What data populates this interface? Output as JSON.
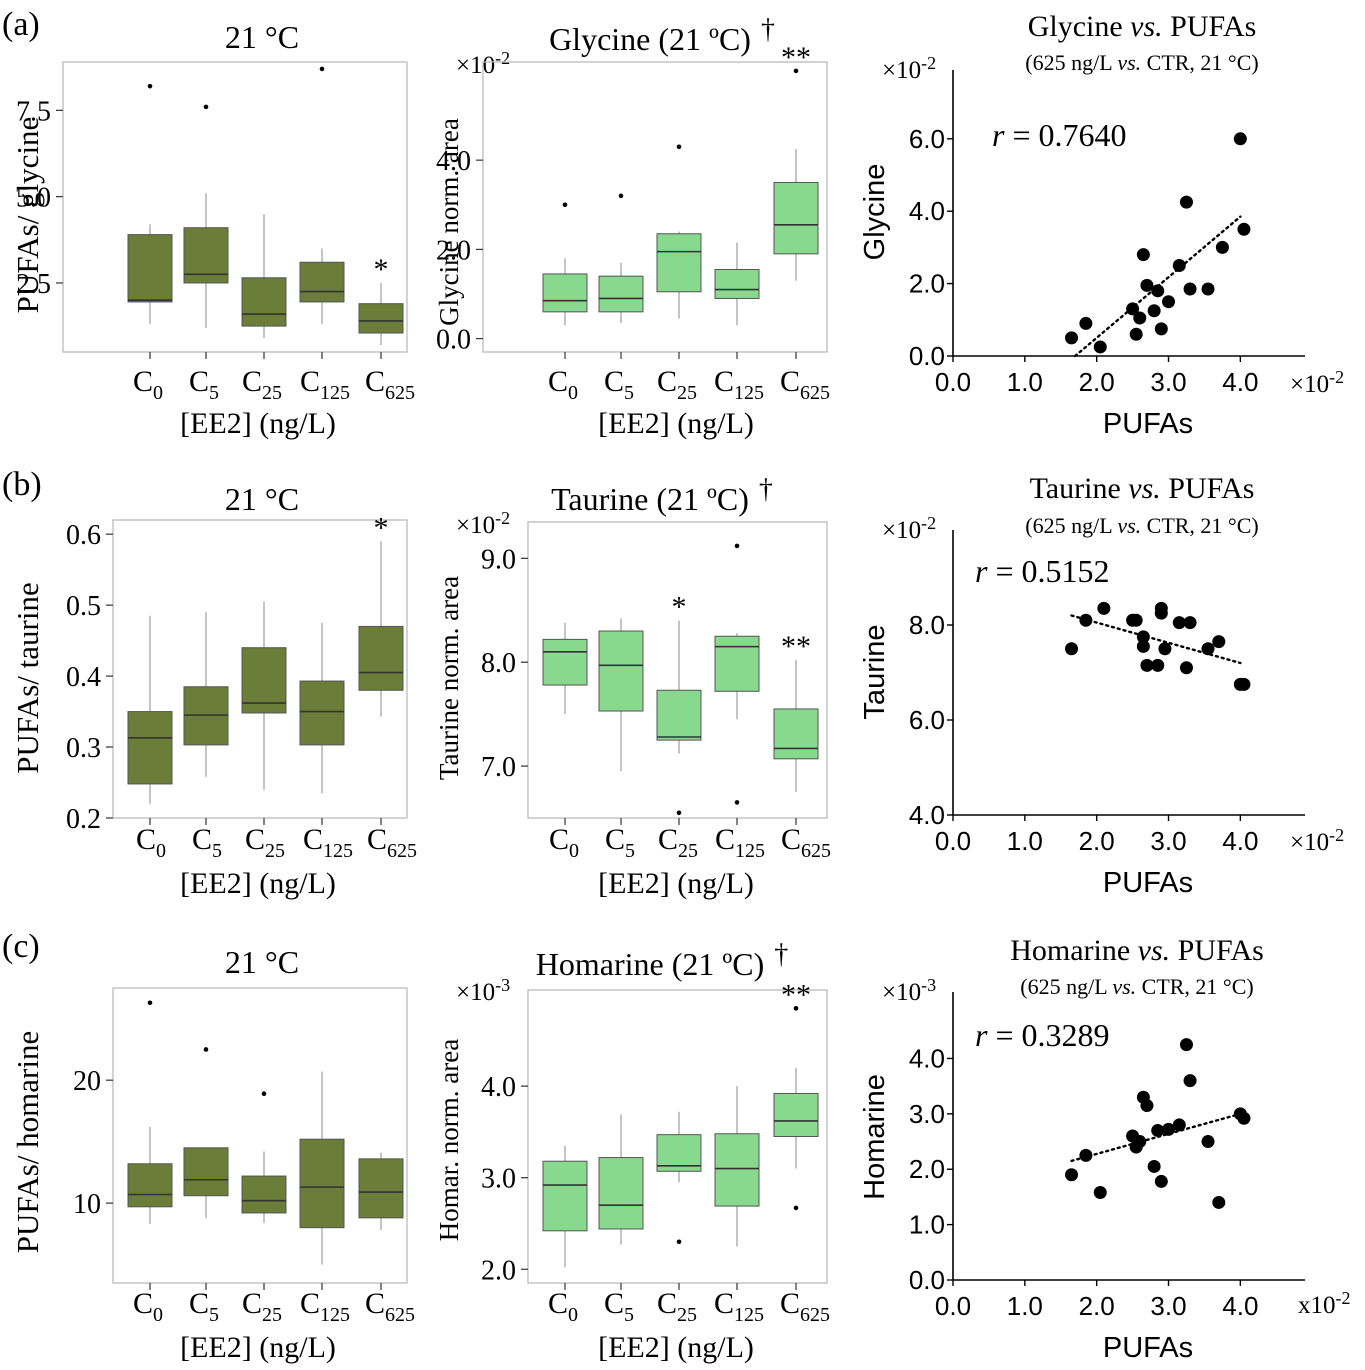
{
  "colors": {
    "dark_box": "#6b7d38",
    "light_box": "#88d88e",
    "frame": "#bbbbbb",
    "whisker": "#aaaaaa",
    "point": "#000000"
  },
  "rows": [
    {
      "label": "(a)",
      "ratio": {
        "title": "21 °C",
        "ylabel": "PUFAs/ glycine",
        "xlabel": "[EE2] (ng/L)",
        "ylim": [
          0.5,
          8.9
        ],
        "ticks": [
          2.5,
          5.0,
          7.5
        ],
        "tick_labels": [
          "2.5",
          "5.0",
          "7.5"
        ]
      },
      "metab": {
        "title": "Glycine (21 ºC)",
        "dagger": "†",
        "ylabel": "Glycine norm. area",
        "xlabel": "[EE2] (ng/L)",
        "multiplier": "×10",
        "exponent": "-2",
        "ylim": [
          -0.3,
          6.2
        ],
        "ticks": [
          0.0,
          2.0,
          4.0
        ],
        "tick_labels": [
          "0.0",
          "2.0",
          "4.0"
        ]
      },
      "scatter": {
        "title_pre": "Glycine ",
        "title_vs": "vs.",
        "title_post": " PUFAs",
        "subtitle_pre": "(625 ng/L ",
        "subtitle_vs": "vs.",
        "subtitle_post": " CTR, 21 °C)",
        "r_label": "r",
        "r_value": " = 0.7640",
        "ylabel": "Glycine",
        "xlabel": "PUFAs",
        "y_multiplier": "×10",
        "y_exponent": "-2",
        "x_multiplier": "×10",
        "x_exponent": "-2",
        "xlim": [
          0.0,
          4.9
        ],
        "ylim": [
          0.0,
          7.9
        ],
        "x_ticks": [
          0.0,
          1.0,
          2.0,
          3.0,
          4.0
        ],
        "x_tick_labels": [
          "0.0",
          "1.0",
          "2.0",
          "3.0",
          "4.0"
        ],
        "y_ticks": [
          0.0,
          2.0,
          4.0,
          6.0
        ],
        "y_tick_labels": [
          "0.0",
          "2.0",
          "4.0",
          "6.0"
        ],
        "fit": [
          [
            1.7,
            0.0
          ],
          [
            4.0,
            3.85
          ]
        ]
      }
    },
    {
      "label": "(b)",
      "ratio": {
        "title": "21 °C",
        "ylabel": "PUFAs/ taurine",
        "xlabel": "[EE2] (ng/L)",
        "ylim": [
          0.2,
          0.62
        ],
        "ticks": [
          0.2,
          0.3,
          0.4,
          0.5,
          0.6
        ],
        "tick_labels": [
          "0.2",
          "0.3",
          "0.4",
          "0.5",
          "0.6"
        ]
      },
      "metab": {
        "title": "Taurine (21 ºC)",
        "dagger": "†",
        "ylabel": "Taurine norm. area",
        "xlabel": "[EE2] (ng/L)",
        "multiplier": "×10",
        "exponent": "-2",
        "ylim": [
          6.5,
          9.35
        ],
        "ticks": [
          7.0,
          8.0,
          9.0
        ],
        "tick_labels": [
          "7.0",
          "8.0",
          "9.0"
        ]
      },
      "scatter": {
        "title_pre": "Taurine ",
        "title_vs": "vs.",
        "title_post": " PUFAs",
        "subtitle_pre": "(625 ng/L ",
        "subtitle_vs": "vs.",
        "subtitle_post": " CTR, 21 °C)",
        "r_label": "r",
        "r_value": " = 0.5152",
        "ylabel": "Taurine",
        "xlabel": "PUFAs",
        "y_multiplier": "×10",
        "y_exponent": "-2",
        "x_multiplier": "×10",
        "x_exponent": "-2",
        "xlim": [
          0.0,
          4.9
        ],
        "ylim": [
          4.0,
          10.0
        ],
        "x_ticks": [
          0.0,
          1.0,
          2.0,
          3.0,
          4.0
        ],
        "x_tick_labels": [
          "0.0",
          "1.0",
          "2.0",
          "3.0",
          "4.0"
        ],
        "y_ticks": [
          4.0,
          6.0,
          8.0
        ],
        "y_tick_labels": [
          "4.0",
          "6.0",
          "8.0"
        ],
        "fit": [
          [
            1.65,
            8.2
          ],
          [
            4.0,
            7.2
          ]
        ]
      }
    },
    {
      "label": "(c)",
      "ratio": {
        "title": "21 °C",
        "ylabel": "PUFAs/ homarine",
        "xlabel": "[EE2] (ng/L)",
        "ylim": [
          3.5,
          27.5
        ],
        "ticks": [
          10,
          20
        ],
        "tick_labels": [
          "10",
          "20"
        ]
      },
      "metab": {
        "title": "Homarine (21 ºC)",
        "dagger": "†",
        "ylabel": "Homar. norm. area",
        "xlabel": "[EE2] (ng/L)",
        "multiplier": "×10",
        "exponent": "-3",
        "ylim": [
          1.85,
          5.05
        ],
        "ticks": [
          2.0,
          3.0,
          4.0
        ],
        "tick_labels": [
          "2.0",
          "3.0",
          "4.0"
        ]
      },
      "scatter": {
        "title_pre": "Homarine ",
        "title_vs": "vs.",
        "title_post": " PUFAs",
        "subtitle_pre": "(625 ng/L ",
        "subtitle_vs": "vs.",
        "subtitle_post": " CTR, 21 °C)",
        "r_label": "r",
        "r_value": " = 0.3289",
        "ylabel": "Homarine",
        "xlabel": "PUFAs",
        "y_multiplier": "×10",
        "y_exponent": "-3",
        "x_multiplier": "x10",
        "x_exponent": "-2",
        "xlim": [
          0.0,
          4.9
        ],
        "ylim": [
          0.0,
          5.2
        ],
        "x_ticks": [
          0.0,
          1.0,
          2.0,
          3.0,
          4.0
        ],
        "x_tick_labels": [
          "0.0",
          "1.0",
          "2.0",
          "3.0",
          "4.0"
        ],
        "y_ticks": [
          0.0,
          1.0,
          2.0,
          3.0,
          4.0
        ],
        "y_tick_labels": [
          "0.0",
          "1.0",
          "2.0",
          "3.0",
          "4.0"
        ],
        "fit": [
          [
            1.65,
            2.15
          ],
          [
            4.0,
            3.0
          ]
        ]
      }
    }
  ],
  "chart_data": [
    {
      "type": "box",
      "panel": "(a) ratio",
      "title": "21 °C",
      "xlabel": "[EE2] (ng/L)",
      "ylabel": "PUFAs/ glycine",
      "categories": [
        "C0",
        "C5",
        "C25",
        "C125",
        "C625"
      ],
      "ylim": [
        0.5,
        8.9
      ],
      "boxes": [
        {
          "whisker_low": 1.3,
          "q1": 1.95,
          "median": 2.0,
          "q3": 3.9,
          "whisker_high": 4.2,
          "outliers": [
            8.2
          ]
        },
        {
          "whisker_low": 1.2,
          "q1": 2.5,
          "median": 2.75,
          "q3": 4.1,
          "whisker_high": 5.1,
          "outliers": [
            7.6
          ]
        },
        {
          "whisker_low": 0.9,
          "q1": 1.25,
          "median": 1.6,
          "q3": 2.65,
          "whisker_high": 4.5,
          "outliers": []
        },
        {
          "whisker_low": 1.3,
          "q1": 1.95,
          "median": 2.25,
          "q3": 3.1,
          "whisker_high": 3.5,
          "outliers": [
            8.7
          ]
        },
        {
          "whisker_low": 0.7,
          "q1": 1.05,
          "median": 1.4,
          "q3": 1.9,
          "whisker_high": 2.5,
          "outliers": []
        }
      ],
      "annotations": [
        {
          "category": "C625",
          "text": "*"
        }
      ]
    },
    {
      "type": "box",
      "panel": "(a) metabolite",
      "title": "Glycine (21 ºC) †",
      "xlabel": "[EE2] (ng/L)",
      "ylabel": "Glycine norm. area",
      "multiplier": "×10-2",
      "categories": [
        "C0",
        "C5",
        "C25",
        "C125",
        "C625"
      ],
      "ylim": [
        -0.3,
        6.2
      ],
      "boxes": [
        {
          "whisker_low": 0.3,
          "q1": 0.6,
          "median": 0.85,
          "q3": 1.45,
          "whisker_high": 1.8,
          "outliers": [
            3.0
          ]
        },
        {
          "whisker_low": 0.35,
          "q1": 0.6,
          "median": 0.9,
          "q3": 1.4,
          "whisker_high": 1.7,
          "outliers": [
            3.2
          ]
        },
        {
          "whisker_low": 0.45,
          "q1": 1.05,
          "median": 1.95,
          "q3": 2.35,
          "whisker_high": 2.4,
          "outliers": [
            4.3
          ]
        },
        {
          "whisker_low": 0.3,
          "q1": 0.9,
          "median": 1.1,
          "q3": 1.55,
          "whisker_high": 2.15,
          "outliers": []
        },
        {
          "whisker_low": 1.3,
          "q1": 1.9,
          "median": 2.55,
          "q3": 3.5,
          "whisker_high": 4.25,
          "outliers": [
            6.0
          ]
        }
      ],
      "annotations": [
        {
          "category": "C625",
          "text": "**"
        }
      ]
    },
    {
      "type": "scatter",
      "panel": "(a) correlation",
      "title": "Glycine vs. PUFAs",
      "subtitle": "(625 ng/L vs. CTR, 21 °C)",
      "xlabel": "PUFAs",
      "ylabel": "Glycine",
      "r": 0.764,
      "x_multiplier": "×10-2",
      "y_multiplier": "×10-2",
      "xlim": [
        0.0,
        4.9
      ],
      "ylim": [
        0.0,
        7.9
      ],
      "points": [
        [
          1.65,
          0.5
        ],
        [
          1.85,
          0.9
        ],
        [
          2.05,
          0.25
        ],
        [
          2.5,
          1.3
        ],
        [
          2.55,
          0.6
        ],
        [
          2.6,
          1.05
        ],
        [
          2.65,
          2.8
        ],
        [
          2.7,
          1.95
        ],
        [
          2.8,
          1.25
        ],
        [
          2.85,
          1.8
        ],
        [
          2.9,
          0.75
        ],
        [
          3.0,
          1.5
        ],
        [
          3.15,
          2.5
        ],
        [
          3.25,
          4.25
        ],
        [
          3.3,
          1.85
        ],
        [
          3.55,
          1.85
        ],
        [
          3.75,
          3.0
        ],
        [
          4.0,
          6.0
        ],
        [
          4.05,
          3.5
        ]
      ]
    },
    {
      "type": "box",
      "panel": "(b) ratio",
      "title": "21 °C",
      "xlabel": "[EE2] (ng/L)",
      "ylabel": "PUFAs/ taurine",
      "categories": [
        "C0",
        "C5",
        "C25",
        "C125",
        "C625"
      ],
      "ylim": [
        0.2,
        0.62
      ],
      "boxes": [
        {
          "whisker_low": 0.22,
          "q1": 0.248,
          "median": 0.313,
          "q3": 0.35,
          "whisker_high": 0.485,
          "outliers": []
        },
        {
          "whisker_low": 0.258,
          "q1": 0.303,
          "median": 0.345,
          "q3": 0.385,
          "whisker_high": 0.49,
          "outliers": []
        },
        {
          "whisker_low": 0.24,
          "q1": 0.348,
          "median": 0.362,
          "q3": 0.44,
          "whisker_high": 0.505,
          "outliers": []
        },
        {
          "whisker_low": 0.235,
          "q1": 0.303,
          "median": 0.35,
          "q3": 0.393,
          "whisker_high": 0.475,
          "outliers": []
        },
        {
          "whisker_low": 0.343,
          "q1": 0.38,
          "median": 0.405,
          "q3": 0.47,
          "whisker_high": 0.59,
          "outliers": []
        }
      ],
      "annotations": [
        {
          "category": "C625",
          "text": "*"
        }
      ]
    },
    {
      "type": "box",
      "panel": "(b) metabolite",
      "title": "Taurine (21 ºC) †",
      "xlabel": "[EE2] (ng/L)",
      "ylabel": "Taurine norm. area",
      "multiplier": "×10-2",
      "categories": [
        "C0",
        "C5",
        "C25",
        "C125",
        "C625"
      ],
      "ylim": [
        6.5,
        9.35
      ],
      "boxes": [
        {
          "whisker_low": 7.5,
          "q1": 7.78,
          "median": 8.1,
          "q3": 8.22,
          "whisker_high": 8.38,
          "outliers": []
        },
        {
          "whisker_low": 6.95,
          "q1": 7.53,
          "median": 7.97,
          "q3": 8.3,
          "whisker_high": 8.42,
          "outliers": []
        },
        {
          "whisker_low": 7.12,
          "q1": 7.25,
          "median": 7.28,
          "q3": 7.73,
          "whisker_high": 8.4,
          "outliers": [
            6.55
          ]
        },
        {
          "whisker_low": 7.45,
          "q1": 7.72,
          "median": 8.15,
          "q3": 8.25,
          "whisker_high": 8.28,
          "outliers": [
            9.12,
            6.65
          ]
        },
        {
          "whisker_low": 6.75,
          "q1": 7.07,
          "median": 7.17,
          "q3": 7.55,
          "whisker_high": 8.02,
          "outliers": []
        }
      ],
      "annotations": [
        {
          "category": "C25",
          "text": "*"
        },
        {
          "category": "C625",
          "text": "**"
        }
      ]
    },
    {
      "type": "scatter",
      "panel": "(b) correlation",
      "title": "Taurine vs. PUFAs",
      "subtitle": "(625 ng/L vs. CTR, 21 °C)",
      "xlabel": "PUFAs",
      "ylabel": "Taurine",
      "r": 0.5152,
      "x_multiplier": "×10-2",
      "y_multiplier": "×10-2",
      "xlim": [
        0.0,
        4.9
      ],
      "ylim": [
        4.0,
        10.0
      ],
      "points": [
        [
          1.65,
          7.5
        ],
        [
          1.85,
          8.1
        ],
        [
          2.1,
          8.35
        ],
        [
          2.5,
          8.1
        ],
        [
          2.55,
          8.1
        ],
        [
          2.65,
          7.75
        ],
        [
          2.65,
          7.55
        ],
        [
          2.7,
          7.15
        ],
        [
          2.85,
          7.15
        ],
        [
          2.9,
          8.25
        ],
        [
          2.9,
          8.35
        ],
        [
          2.95,
          7.5
        ],
        [
          3.15,
          8.05
        ],
        [
          3.25,
          7.1
        ],
        [
          3.3,
          8.05
        ],
        [
          3.55,
          7.5
        ],
        [
          3.7,
          7.65
        ],
        [
          4.0,
          6.75
        ],
        [
          4.05,
          6.75
        ]
      ]
    },
    {
      "type": "box",
      "panel": "(c) ratio",
      "title": "21 °C",
      "xlabel": "[EE2] (ng/L)",
      "ylabel": "PUFAs/ homarine",
      "categories": [
        "C0",
        "C5",
        "C25",
        "C125",
        "C625"
      ],
      "ylim": [
        3.5,
        27.5
      ],
      "boxes": [
        {
          "whisker_low": 8.3,
          "q1": 9.7,
          "median": 10.7,
          "q3": 13.2,
          "whisker_high": 16.2,
          "outliers": [
            26.3
          ]
        },
        {
          "whisker_low": 8.8,
          "q1": 10.6,
          "median": 11.9,
          "q3": 14.5,
          "whisker_high": 14.5,
          "outliers": [
            22.5
          ]
        },
        {
          "whisker_low": 8.4,
          "q1": 9.2,
          "median": 10.2,
          "q3": 12.2,
          "whisker_high": 14.2,
          "outliers": [
            18.9
          ]
        },
        {
          "whisker_low": 5.0,
          "q1": 8.0,
          "median": 11.3,
          "q3": 15.2,
          "whisker_high": 20.7,
          "outliers": []
        },
        {
          "whisker_low": 7.8,
          "q1": 8.8,
          "median": 10.9,
          "q3": 13.6,
          "whisker_high": 14.1,
          "outliers": []
        }
      ],
      "annotations": []
    },
    {
      "type": "box",
      "panel": "(c) metabolite",
      "title": "Homarine (21 ºC) †",
      "xlabel": "[EE2] (ng/L)",
      "ylabel": "Homar. norm. area",
      "multiplier": "×10-3",
      "categories": [
        "C0",
        "C5",
        "C25",
        "C125",
        "C625"
      ],
      "ylim": [
        1.85,
        5.05
      ],
      "boxes": [
        {
          "whisker_low": 2.02,
          "q1": 2.42,
          "median": 2.92,
          "q3": 3.18,
          "whisker_high": 3.35,
          "outliers": []
        },
        {
          "whisker_low": 2.27,
          "q1": 2.44,
          "median": 2.7,
          "q3": 3.22,
          "whisker_high": 3.69,
          "outliers": []
        },
        {
          "whisker_low": 2.95,
          "q1": 3.07,
          "median": 3.13,
          "q3": 3.47,
          "whisker_high": 3.72,
          "outliers": [
            2.3
          ]
        },
        {
          "whisker_low": 2.25,
          "q1": 2.69,
          "median": 3.1,
          "q3": 3.48,
          "whisker_high": 4.0,
          "outliers": []
        },
        {
          "whisker_low": 3.1,
          "q1": 3.45,
          "median": 3.62,
          "q3": 3.92,
          "whisker_high": 4.2,
          "outliers": [
            4.85,
            2.67
          ]
        }
      ],
      "annotations": [
        {
          "category": "C625",
          "text": "**"
        }
      ]
    },
    {
      "type": "scatter",
      "panel": "(c) correlation",
      "title": "Homarine vs. PUFAs",
      "subtitle": "(625 ng/L vs. CTR, 21 °C)",
      "xlabel": "PUFAs",
      "ylabel": "Homarine",
      "r": 0.3289,
      "x_multiplier": "x10-2",
      "y_multiplier": "×10-3",
      "xlim": [
        0.0,
        4.9
      ],
      "ylim": [
        0.0,
        5.2
      ],
      "points": [
        [
          1.65,
          1.9
        ],
        [
          1.85,
          2.25
        ],
        [
          2.05,
          1.58
        ],
        [
          2.5,
          2.6
        ],
        [
          2.55,
          2.4
        ],
        [
          2.6,
          2.5
        ],
        [
          2.65,
          3.3
        ],
        [
          2.7,
          3.15
        ],
        [
          2.8,
          2.05
        ],
        [
          2.85,
          2.7
        ],
        [
          2.9,
          1.78
        ],
        [
          3.0,
          2.72
        ],
        [
          3.15,
          2.8
        ],
        [
          3.25,
          4.25
        ],
        [
          3.3,
          3.6
        ],
        [
          3.55,
          2.5
        ],
        [
          3.7,
          1.4
        ],
        [
          4.0,
          3.0
        ],
        [
          4.05,
          2.92
        ]
      ]
    }
  ]
}
